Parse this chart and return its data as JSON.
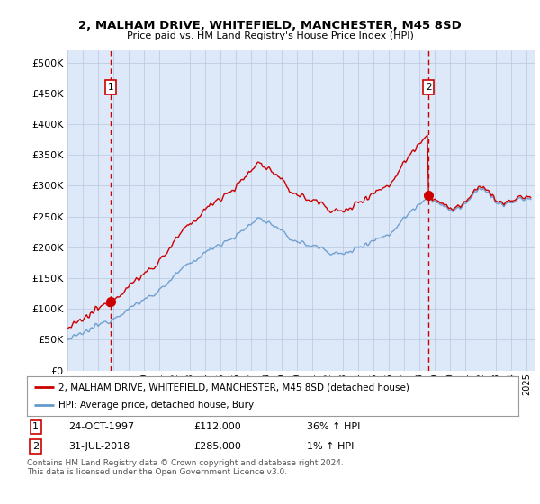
{
  "title": "2, MALHAM DRIVE, WHITEFIELD, MANCHESTER, M45 8SD",
  "subtitle": "Price paid vs. HM Land Registry's House Price Index (HPI)",
  "legend_line1": "2, MALHAM DRIVE, WHITEFIELD, MANCHESTER, M45 8SD (detached house)",
  "legend_line2": "HPI: Average price, detached house, Bury",
  "annotation1": {
    "label": "1",
    "date_str": "24-OCT-1997",
    "price": 112000,
    "hpi_text": "36% ↑ HPI"
  },
  "annotation2": {
    "label": "2",
    "date_str": "31-JUL-2018",
    "price": 285000,
    "hpi_text": "1% ↑ HPI"
  },
  "footnote": "Contains HM Land Registry data © Crown copyright and database right 2024.\nThis data is licensed under the Open Government Licence v3.0.",
  "hpi_color": "#6699cc",
  "price_color": "#cc0000",
  "dashed_line_color": "#cc0000",
  "background_color": "#dde8f8",
  "ylim": [
    0,
    520000
  ],
  "yticks": [
    0,
    50000,
    100000,
    150000,
    200000,
    250000,
    300000,
    350000,
    400000,
    450000,
    500000
  ],
  "xlim_start": 1995.0,
  "xlim_end": 2025.5,
  "sale1_x": 1997.81,
  "sale1_y": 112000,
  "sale2_x": 2018.58,
  "sale2_y": 285000,
  "hpi_at_sale1": 82000,
  "hpi_at_sale2": 282000
}
